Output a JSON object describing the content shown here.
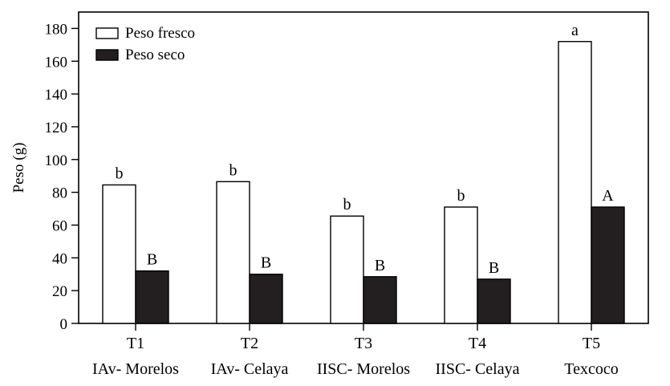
{
  "chart_data": {
    "type": "bar",
    "ylabel": "Peso (g)",
    "xlabel": "",
    "ylim": [
      0,
      190
    ],
    "yticks": [
      0,
      20,
      40,
      60,
      80,
      100,
      120,
      140,
      160,
      180
    ],
    "categories": [
      {
        "code": "T1",
        "name": "IAv- Morelos"
      },
      {
        "code": "T2",
        "name": "IAv- Celaya"
      },
      {
        "code": "T3",
        "name": "IISC- Morelos"
      },
      {
        "code": "T4",
        "name": "IISC- Celaya"
      },
      {
        "code": "T5",
        "name": "Texcoco"
      }
    ],
    "series": [
      {
        "name": "Peso fresco",
        "color": "#ffffff",
        "values": [
          84.5,
          86.5,
          65.5,
          71,
          172
        ],
        "annotations": [
          "b",
          "b",
          "b",
          "b",
          "a"
        ]
      },
      {
        "name": "Peso seco",
        "color": "#231f20",
        "values": [
          32,
          30,
          28.5,
          27,
          71
        ],
        "annotations": [
          "B",
          "B",
          "B",
          "B",
          "A"
        ]
      }
    ],
    "legend": "top-left",
    "grid": false
  }
}
